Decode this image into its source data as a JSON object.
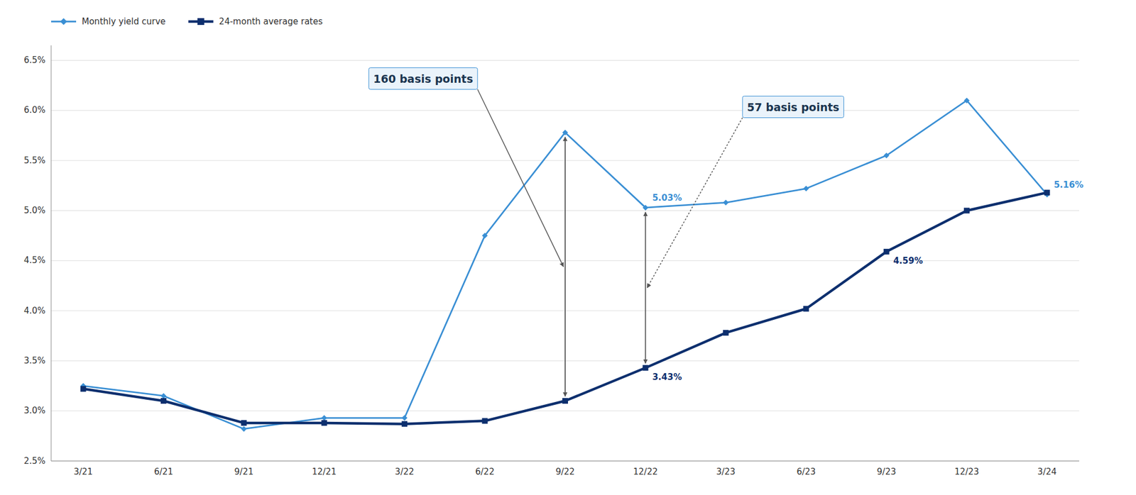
{
  "chart_data": {
    "type": "line",
    "categories": [
      "3/21",
      "6/21",
      "9/21",
      "12/21",
      "3/22",
      "6/22",
      "9/22",
      "12/22",
      "3/23",
      "6/23",
      "9/23",
      "12/23",
      "3/24"
    ],
    "series": [
      {
        "name": "Monthly yield curve",
        "color": "#3a8fd4",
        "marker": "diamond",
        "values": [
          3.25,
          3.15,
          2.82,
          2.93,
          2.93,
          4.75,
          5.78,
          5.03,
          5.08,
          5.22,
          5.55,
          6.1,
          5.16
        ],
        "value_labels": [
          null,
          null,
          null,
          null,
          null,
          null,
          null,
          "5.03%",
          null,
          null,
          null,
          null,
          "5.16%"
        ]
      },
      {
        "name": "24-month average rates",
        "color": "#0d2f6e",
        "marker": "square",
        "values": [
          3.22,
          3.1,
          2.88,
          2.88,
          2.87,
          2.9,
          3.1,
          3.43,
          3.78,
          4.02,
          4.59,
          5.0,
          5.18
        ],
        "value_labels": [
          null,
          null,
          null,
          null,
          null,
          null,
          null,
          "3.43%",
          null,
          null,
          "4.59%",
          null,
          null
        ]
      }
    ],
    "ylim": [
      2.5,
      6.65
    ],
    "yticks": [
      {
        "value": 2.5,
        "label": "2.5%"
      },
      {
        "value": 3.0,
        "label": "3.0%"
      },
      {
        "value": 3.5,
        "label": "3.5%"
      },
      {
        "value": 4.0,
        "label": "4.0%"
      },
      {
        "value": 4.5,
        "label": "4.5%"
      },
      {
        "value": 5.0,
        "label": "5.0%"
      },
      {
        "value": 5.5,
        "label": "5.5%"
      },
      {
        "value": 6.0,
        "label": "6.0%"
      },
      {
        "value": 6.5,
        "label": "6.5%"
      }
    ],
    "grid": true,
    "legend": "upper-left",
    "data_labels": true,
    "annotations": [
      {
        "text": "160 basis points",
        "x": "9/22"
      },
      {
        "text": "57 basis points",
        "x": "12/22"
      }
    ]
  }
}
